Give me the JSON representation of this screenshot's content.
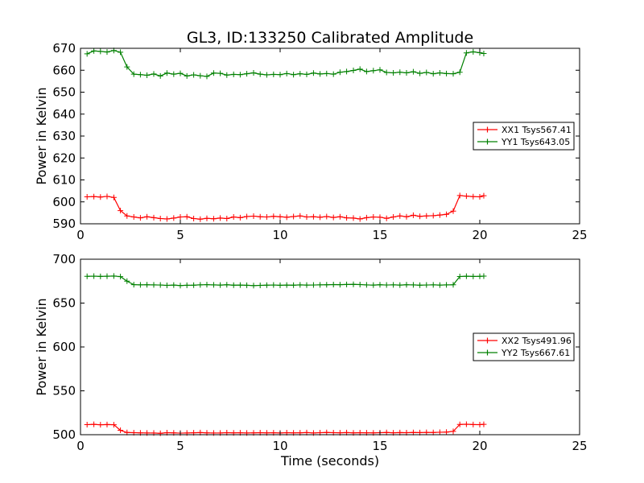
{
  "figure": {
    "title": "GL3, ID:133250 Calibrated Amplitude",
    "xlabel": "Time (seconds)"
  },
  "chart_data": [
    {
      "type": "line",
      "title": "GL3, ID:133250 Calibrated Amplitude",
      "xlabel": "",
      "ylabel": "Power in Kelvin",
      "xlim": [
        0,
        25
      ],
      "ylim": [
        590,
        670
      ],
      "xticks": [
        "0",
        "5",
        "10",
        "15",
        "20",
        "25"
      ],
      "yticks": [
        "590",
        "600",
        "610",
        "620",
        "630",
        "640",
        "650",
        "660",
        "670"
      ],
      "grid": false,
      "legend_position": "center-right",
      "marker": "+",
      "x": [
        0.33,
        0.67,
        1.0,
        1.33,
        1.67,
        2.0,
        2.33,
        2.67,
        3.0,
        3.33,
        3.67,
        4.0,
        4.33,
        4.67,
        5.0,
        5.33,
        5.67,
        6.0,
        6.33,
        6.67,
        7.0,
        7.33,
        7.67,
        8.0,
        8.33,
        8.67,
        9.0,
        9.33,
        9.67,
        10.0,
        10.33,
        10.67,
        11.0,
        11.33,
        11.67,
        12.0,
        12.33,
        12.67,
        13.0,
        13.33,
        13.67,
        14.0,
        14.33,
        14.67,
        15.0,
        15.33,
        15.67,
        16.0,
        16.33,
        16.67,
        17.0,
        17.33,
        17.67,
        18.0,
        18.33,
        18.67,
        19.0,
        19.33,
        19.67,
        20.0,
        20.2
      ],
      "series": [
        {
          "name": "XX1 Tsys567.41",
          "color": "#ff0000",
          "values": [
            602.3,
            602.4,
            602.2,
            602.5,
            602.0,
            596.0,
            593.6,
            593.1,
            592.7,
            593.2,
            592.8,
            592.4,
            592.2,
            592.6,
            593.1,
            593.2,
            592.4,
            592.1,
            592.5,
            592.3,
            592.6,
            592.4,
            593.1,
            592.8,
            593.3,
            593.5,
            593.2,
            593.1,
            593.4,
            593.2,
            593.0,
            593.3,
            593.6,
            593.1,
            593.2,
            593.0,
            593.3,
            592.9,
            593.2,
            592.7,
            592.6,
            592.2,
            592.8,
            593.1,
            593.0,
            592.5,
            593.1,
            593.6,
            593.2,
            593.9,
            593.4,
            593.6,
            593.7,
            594.0,
            594.3,
            595.8,
            602.9,
            602.6,
            602.4,
            602.3,
            602.8
          ]
        },
        {
          "name": "YY1 Tsys643.05",
          "color": "#008000",
          "values": [
            667.5,
            668.8,
            668.6,
            668.3,
            669.0,
            668.2,
            661.5,
            658.2,
            658.0,
            657.7,
            658.3,
            657.4,
            658.7,
            658.2,
            658.6,
            657.4,
            657.9,
            657.5,
            657.2,
            658.7,
            658.6,
            657.8,
            658.1,
            658.0,
            658.4,
            658.8,
            658.2,
            657.9,
            658.1,
            658.0,
            658.5,
            658.0,
            658.4,
            658.1,
            658.7,
            658.3,
            658.5,
            658.2,
            659.1,
            659.4,
            659.9,
            660.5,
            659.4,
            659.8,
            660.2,
            659.0,
            658.8,
            659.1,
            658.8,
            659.3,
            658.6,
            659.0,
            658.4,
            658.8,
            658.5,
            658.4,
            659.1,
            667.9,
            668.4,
            668.0,
            667.6
          ]
        }
      ]
    },
    {
      "type": "line",
      "title": "",
      "xlabel": "Time (seconds)",
      "ylabel": "Power in Kelvin",
      "xlim": [
        0,
        25
      ],
      "ylim": [
        500,
        700
      ],
      "xticks": [
        "0",
        "5",
        "10",
        "15",
        "20",
        "25"
      ],
      "yticks": [
        "500",
        "550",
        "600",
        "650",
        "700"
      ],
      "grid": false,
      "legend_position": "center-right",
      "marker": "+",
      "x": [
        0.33,
        0.67,
        1.0,
        1.33,
        1.67,
        2.0,
        2.33,
        2.67,
        3.0,
        3.33,
        3.67,
        4.0,
        4.33,
        4.67,
        5.0,
        5.33,
        5.67,
        6.0,
        6.33,
        6.67,
        7.0,
        7.33,
        7.67,
        8.0,
        8.33,
        8.67,
        9.0,
        9.33,
        9.67,
        10.0,
        10.33,
        10.67,
        11.0,
        11.33,
        11.67,
        12.0,
        12.33,
        12.67,
        13.0,
        13.33,
        13.67,
        14.0,
        14.33,
        14.67,
        15.0,
        15.33,
        15.67,
        16.0,
        16.33,
        16.67,
        17.0,
        17.33,
        17.67,
        18.0,
        18.33,
        18.67,
        19.0,
        19.33,
        19.67,
        20.0,
        20.2
      ],
      "series": [
        {
          "name": "XX2 Tsys491.96",
          "color": "#ff0000",
          "values": [
            511.5,
            511.8,
            511.3,
            511.6,
            511.4,
            505.0,
            502.5,
            502.3,
            502.1,
            502.0,
            501.9,
            501.6,
            502.3,
            502.1,
            501.8,
            502.0,
            502.2,
            502.4,
            502.1,
            501.9,
            502.0,
            502.3,
            502.1,
            502.2,
            502.0,
            502.1,
            502.3,
            502.1,
            502.2,
            502.0,
            502.3,
            502.1,
            502.2,
            502.4,
            502.0,
            502.3,
            502.5,
            502.3,
            502.2,
            502.4,
            502.1,
            502.3,
            502.2,
            502.1,
            502.3,
            502.5,
            502.2,
            502.4,
            502.3,
            502.5,
            502.4,
            502.6,
            502.5,
            502.8,
            503.0,
            503.8,
            511.7,
            511.9,
            511.6,
            511.5,
            511.8
          ]
        },
        {
          "name": "YY2 Tsys667.61",
          "color": "#008000",
          "values": [
            680.5,
            680.7,
            680.4,
            680.6,
            680.8,
            680.2,
            675.0,
            671.0,
            670.8,
            670.9,
            670.7,
            670.6,
            670.2,
            670.5,
            670.0,
            670.3,
            670.4,
            670.8,
            671.0,
            670.7,
            670.5,
            670.9,
            670.4,
            670.5,
            670.3,
            669.9,
            670.2,
            670.4,
            670.6,
            670.3,
            670.5,
            670.4,
            670.7,
            670.5,
            670.6,
            670.8,
            670.9,
            671.1,
            671.0,
            671.2,
            671.3,
            671.1,
            670.7,
            670.5,
            670.9,
            670.6,
            670.8,
            670.5,
            670.9,
            670.7,
            670.4,
            670.6,
            670.8,
            670.5,
            670.7,
            670.9,
            680.3,
            680.6,
            680.4,
            680.5,
            680.7
          ]
        }
      ]
    }
  ]
}
